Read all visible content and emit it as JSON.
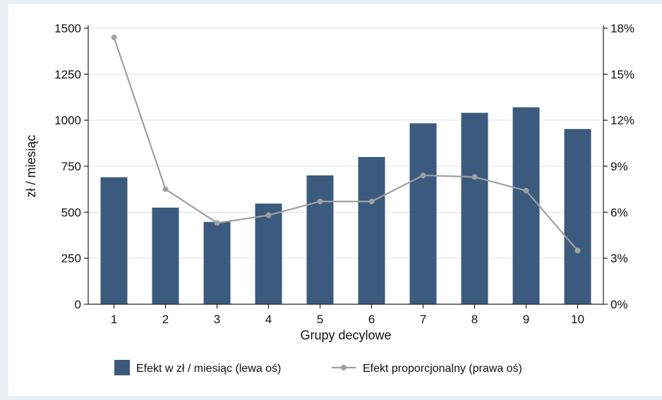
{
  "chart_data": {
    "type": "bar",
    "categories": [
      "1",
      "2",
      "3",
      "4",
      "5",
      "6",
      "7",
      "8",
      "9",
      "10"
    ],
    "series": [
      {
        "name": "Efekt w zł / miesiąc (lewa oś)",
        "type": "bar",
        "axis": "left",
        "color": "#3b5b7e",
        "values": [
          690,
          525,
          447,
          547,
          700,
          800,
          983,
          1040,
          1070,
          952
        ]
      },
      {
        "name": "Efekt proporcjonalny (prawa oś)",
        "type": "line",
        "axis": "right",
        "color": "#a0a0a0",
        "values": [
          17.4,
          7.5,
          5.3,
          5.8,
          6.7,
          6.7,
          8.4,
          8.3,
          7.4,
          3.5
        ]
      }
    ],
    "xlabel": "Grupy decylowe",
    "ylabel": "zł / miesiąc",
    "ylim": [
      0,
      1500
    ],
    "y2lim": [
      0,
      18
    ],
    "y_ticks": [
      "0",
      "250",
      "500",
      "750",
      "1000",
      "1250",
      "1500"
    ],
    "y2_ticks": [
      "0%",
      "3%",
      "6%",
      "9%",
      "12%",
      "15%",
      "18%"
    ],
    "grid": true,
    "legend_position": "bottom"
  }
}
